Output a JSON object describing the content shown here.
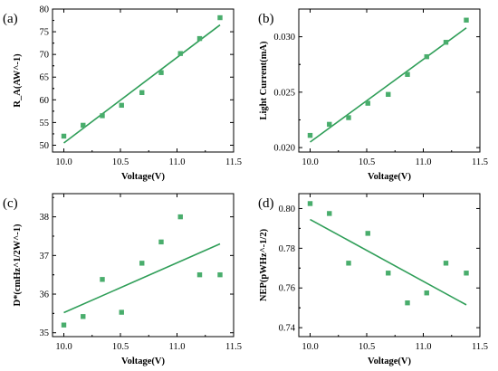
{
  "colors": {
    "marker": "#49ad6c",
    "fit_line": "#2f9e58"
  },
  "chart_data": [
    {
      "type": "scatter",
      "panel_label": "(a)",
      "xlabel": "Voltage(V)",
      "ylabel": "R_A(AW^-1)",
      "xlim": [
        9.9,
        11.5
      ],
      "ylim": [
        48.5,
        80
      ],
      "xticks": [
        10.0,
        10.5,
        11.0,
        11.5
      ],
      "xtick_labels": [
        "10.0",
        "10.5",
        "11.0",
        "11.5"
      ],
      "yticks": [
        50,
        55,
        60,
        65,
        70,
        75,
        80
      ],
      "ytick_labels": [
        "50",
        "55",
        "60",
        "65",
        "70",
        "75",
        "80"
      ],
      "x": [
        10.0,
        10.17,
        10.34,
        10.51,
        10.69,
        10.86,
        11.03,
        11.2,
        11.38
      ],
      "y": [
        52.0,
        54.4,
        56.5,
        58.8,
        61.6,
        66.0,
        70.2,
        73.5,
        78.1
      ],
      "fit": {
        "x": [
          10.0,
          11.38
        ],
        "y": [
          50.5,
          76.5
        ]
      }
    },
    {
      "type": "scatter",
      "panel_label": "(b)",
      "xlabel": "Voltage(V)",
      "ylabel": "Light Current(mA)",
      "xlim": [
        9.9,
        11.5
      ],
      "ylim": [
        0.0196,
        0.0325
      ],
      "xticks": [
        10.0,
        10.5,
        11.0,
        11.5
      ],
      "xtick_labels": [
        "10.0",
        "10.5",
        "11.0",
        "11.5"
      ],
      "yticks": [
        0.02,
        0.025,
        0.03
      ],
      "ytick_labels": [
        "0.020",
        "0.025",
        "0.030"
      ],
      "x": [
        10.0,
        10.17,
        10.34,
        10.51,
        10.69,
        10.86,
        11.03,
        11.2,
        11.38
      ],
      "y": [
        0.0211,
        0.0221,
        0.0227,
        0.024,
        0.0248,
        0.0266,
        0.0282,
        0.0295,
        0.0315
      ],
      "fit": {
        "x": [
          10.0,
          11.38
        ],
        "y": [
          0.0205,
          0.0308
        ]
      }
    },
    {
      "type": "scatter",
      "panel_label": "(c)",
      "xlabel": "Voltage(V)",
      "ylabel": "D*(cmHz^1/2W^-1)",
      "xlim": [
        9.9,
        11.5
      ],
      "ylim": [
        34.9,
        38.6
      ],
      "xticks": [
        10.0,
        10.5,
        11.0,
        11.5
      ],
      "xtick_labels": [
        "10.0",
        "10.5",
        "11.0",
        "11.5"
      ],
      "yticks": [
        35,
        36,
        37,
        38
      ],
      "ytick_labels": [
        "35",
        "36",
        "37",
        "38"
      ],
      "x": [
        10.0,
        10.17,
        10.34,
        10.51,
        10.69,
        10.86,
        11.03,
        11.2,
        11.38
      ],
      "y": [
        35.2,
        35.42,
        36.38,
        35.53,
        36.8,
        37.35,
        38.0,
        36.5,
        36.5
      ],
      "fit": {
        "x": [
          10.0,
          11.38
        ],
        "y": [
          35.52,
          37.3
        ]
      }
    },
    {
      "type": "scatter",
      "panel_label": "(d)",
      "xlabel": "Voltage(V)",
      "ylabel": "NEP(pWHz^-1/2)",
      "xlim": [
        9.9,
        11.5
      ],
      "ylim": [
        0.7355,
        0.8075
      ],
      "xticks": [
        10.0,
        10.5,
        11.0,
        11.5
      ],
      "xtick_labels": [
        "10.0",
        "10.5",
        "11.0",
        "11.5"
      ],
      "yticks": [
        0.74,
        0.76,
        0.78,
        0.8
      ],
      "ytick_labels": [
        "0.74",
        "0.76",
        "0.78",
        "0.80"
      ],
      "x": [
        10.0,
        10.17,
        10.34,
        10.51,
        10.69,
        10.86,
        11.03,
        11.2,
        11.38
      ],
      "y": [
        0.8025,
        0.7975,
        0.7725,
        0.7875,
        0.7675,
        0.7525,
        0.7575,
        0.7725,
        0.7675
      ],
      "fit": {
        "x": [
          10.0,
          11.38
        ],
        "y": [
          0.7945,
          0.7515
        ]
      }
    }
  ]
}
